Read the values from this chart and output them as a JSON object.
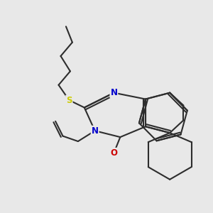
{
  "background_color": "#e8e8e8",
  "bond_color": "#2d2d2d",
  "bond_width": 1.5,
  "atom_colors": {
    "N": "#0000cc",
    "O": "#cc0000",
    "S": "#cccc00"
  },
  "figsize": [
    3.0,
    3.0
  ],
  "dpi": 100
}
